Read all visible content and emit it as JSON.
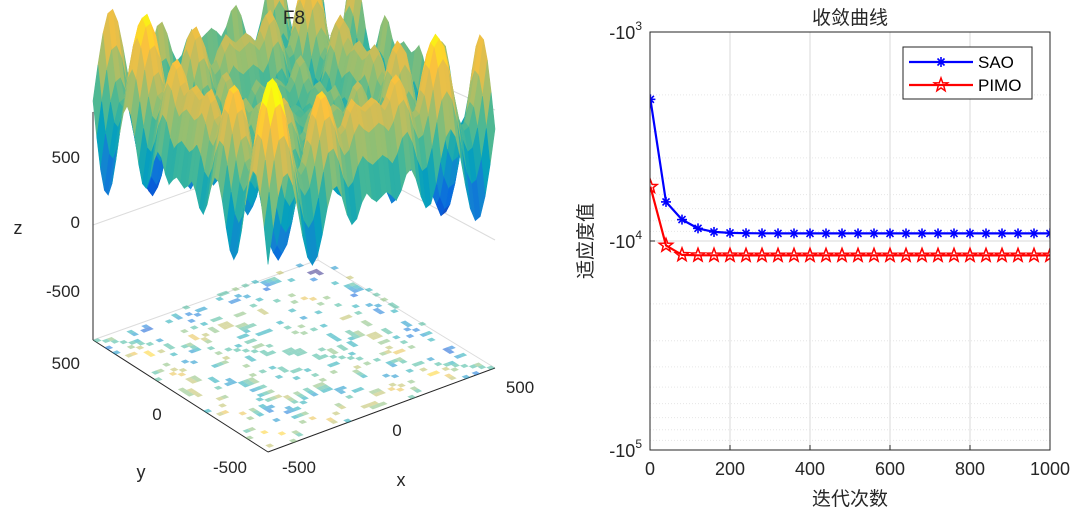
{
  "chart_data": [
    {
      "type": "surface3d",
      "title": "F8",
      "xlabel": "x",
      "ylabel": "y",
      "zlabel": "z",
      "xlim": [
        -500,
        500
      ],
      "ylim": [
        -500,
        500
      ],
      "zlim": [
        -800,
        800
      ],
      "x_ticks": [
        "-500",
        "0",
        "500"
      ],
      "y_ticks": [
        "-500",
        "0",
        "500"
      ],
      "z_ticks": [
        "-500",
        "0",
        "500"
      ],
      "surface": "Schwefel function z = -x*sin(sqrt(|x|)) - y*sin(sqrt(|y|)) with contour projection on base plane",
      "colormap": "parula"
    },
    {
      "type": "line",
      "title": "收敛曲线",
      "xlabel": "迭代次数",
      "ylabel": "适应度值",
      "xlim": [
        0,
        1000
      ],
      "x_ticks": [
        "0",
        "200",
        "400",
        "600",
        "800",
        "1000"
      ],
      "y_scale": "log_negative",
      "ylim": [
        -100000,
        -1000
      ],
      "y_ticks": [
        {
          "base": "-10",
          "exp": "3",
          "value": -1000
        },
        {
          "base": "-10",
          "exp": "4",
          "value": -10000
        },
        {
          "base": "-10",
          "exp": "5",
          "value": -100000
        }
      ],
      "grid": true,
      "legend_position": "top-right",
      "series": [
        {
          "name": "SAO",
          "color": "#0000ff",
          "marker": "asterisk",
          "x": [
            1,
            40,
            80,
            120,
            160,
            200,
            240,
            280,
            320,
            360,
            400,
            440,
            480,
            520,
            560,
            600,
            640,
            680,
            720,
            760,
            800,
            840,
            880,
            920,
            960,
            1000
          ],
          "values": [
            -2100,
            -6500,
            -7900,
            -8700,
            -9050,
            -9150,
            -9180,
            -9190,
            -9195,
            -9200,
            -9200,
            -9200,
            -9200,
            -9200,
            -9200,
            -9200,
            -9200,
            -9200,
            -9200,
            -9200,
            -9200,
            -9200,
            -9200,
            -9200,
            -9200,
            -9200
          ]
        },
        {
          "name": "PIMO",
          "color": "#ff0000",
          "marker": "pentagram",
          "x": [
            1,
            40,
            80,
            120,
            160,
            200,
            240,
            280,
            320,
            360,
            400,
            440,
            480,
            520,
            560,
            600,
            640,
            680,
            720,
            760,
            800,
            840,
            880,
            920,
            960,
            1000
          ],
          "values": [
            -5500,
            -10500,
            -11650,
            -11700,
            -11710,
            -11715,
            -11720,
            -11720,
            -11720,
            -11720,
            -11720,
            -11720,
            -11720,
            -11720,
            -11720,
            -11720,
            -11720,
            -11720,
            -11720,
            -11720,
            -11720,
            -11720,
            -11720,
            -11720,
            -11720,
            -11720
          ]
        }
      ]
    }
  ]
}
